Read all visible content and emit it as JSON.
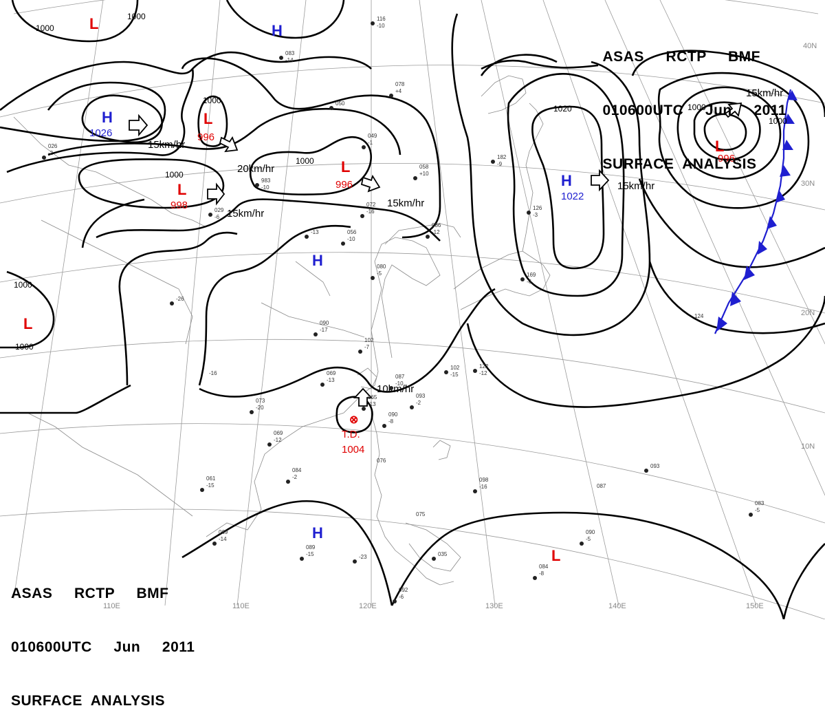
{
  "header": {
    "line1": "ASAS     RCTP     BMF",
    "line2": "010600UTC     Jun     2011",
    "line3": "SURFACE  ANALYSIS"
  },
  "colors": {
    "high": "#1f1fd0",
    "low": "#e00000",
    "front": "#1f1fd0",
    "isobar": "#000000",
    "grid": "#9a9a9a"
  },
  "grid_labels": {
    "lon": [
      "110E",
      "120E",
      "130E",
      "140E",
      "150E"
    ],
    "lat": [
      "40N",
      "30N",
      "20N",
      "10N"
    ]
  },
  "pressure_centers": [
    {
      "type": "L",
      "value": ""
    },
    {
      "type": "H",
      "value": ""
    },
    {
      "type": "H",
      "value": "1026"
    },
    {
      "type": "L",
      "value": "996"
    },
    {
      "type": "L",
      "value": "998"
    },
    {
      "type": "L",
      "value": "996"
    },
    {
      "type": "H",
      "value": ""
    },
    {
      "type": "H",
      "value": "1022"
    },
    {
      "type": "L",
      "value": "996"
    },
    {
      "type": "L",
      "value": ""
    },
    {
      "type": "H",
      "value": ""
    },
    {
      "type": "L",
      "value": ""
    }
  ],
  "tropical_depression": {
    "symbol": "⊗",
    "label": "T.D.",
    "value": "1004",
    "motion": "10km/hr"
  },
  "isobar_labels": [
    "1000",
    "1000",
    "1000",
    "1000",
    "1000",
    "1020",
    "1000",
    "1000"
  ],
  "motion_labels": [
    "15km/hr",
    "20km/hr",
    "15km/hr",
    "15km/hr",
    "15km/hr",
    "15km/hr"
  ],
  "station_numbers": [
    "116",
    "-10",
    "083",
    "-14",
    "050",
    "078",
    "+4",
    "049",
    "-1",
    "058",
    "+10",
    "072",
    "-16",
    "056",
    "-10",
    "086",
    "-12",
    "080",
    "-5",
    "090",
    "-17",
    "102",
    "-7",
    "069",
    "-13",
    "087",
    "-10",
    "093",
    "-2",
    "065",
    "-13",
    "090",
    "-8",
    "073",
    "-20",
    "069",
    "-12",
    "084",
    "-2",
    "061",
    "-15",
    "069",
    "-14",
    "089",
    "-15",
    "076",
    "-23",
    "075",
    "035",
    "092",
    "-6",
    "098",
    "-16",
    "087",
    "093",
    "084",
    "-8",
    "090",
    "-5",
    "083",
    "-5",
    "124",
    "122",
    "-12",
    "102",
    "-15",
    "169",
    "-6",
    "182",
    "-9",
    "126",
    "-3",
    "-26",
    "-16",
    "983",
    "-10",
    "029",
    "-6",
    "-13",
    "026",
    "-2"
  ]
}
